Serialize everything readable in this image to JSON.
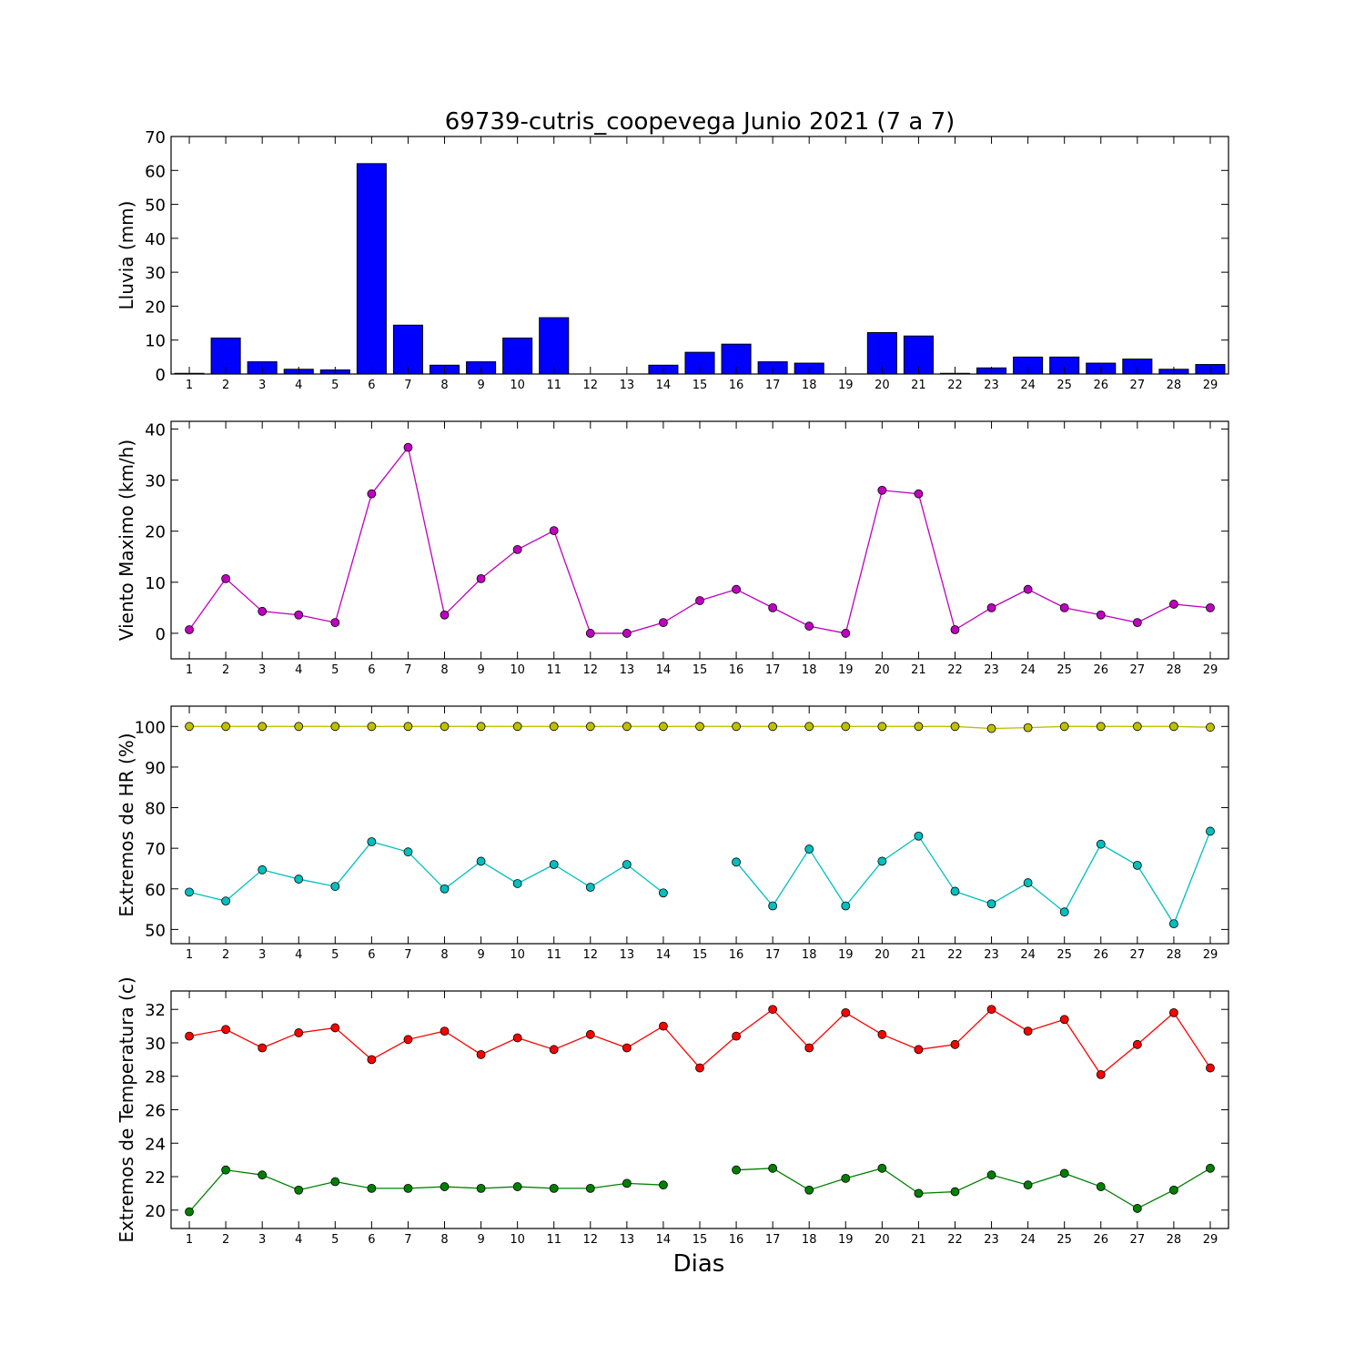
{
  "chart_data": [
    {
      "type": "bar",
      "title": "69739-cutris_coopevega Junio 2021  (7 a 7)",
      "ylabel": "Lluvia (mm)",
      "xlabel": "",
      "ylim": [
        0,
        70
      ],
      "yticks": [
        0,
        10,
        20,
        30,
        40,
        50,
        60,
        70
      ],
      "x": [
        1,
        2,
        3,
        4,
        5,
        6,
        7,
        8,
        9,
        10,
        11,
        12,
        13,
        14,
        15,
        16,
        17,
        18,
        19,
        20,
        21,
        22,
        23,
        24,
        25,
        26,
        27,
        28,
        29
      ],
      "series": [
        {
          "color": "#0000ff",
          "values": [
            0.2,
            10.6,
            3.6,
            1.4,
            1.2,
            62,
            14.4,
            2.6,
            3.6,
            10.6,
            16.6,
            0,
            0,
            2.6,
            6.4,
            8.8,
            3.6,
            3.2,
            0,
            12.2,
            11.2,
            0.2,
            1.8,
            5,
            5,
            3.2,
            4.4,
            1.4,
            2.8
          ]
        }
      ]
    },
    {
      "type": "line",
      "title": "",
      "ylabel": "Viento Maximo (km/h)",
      "xlabel": "",
      "ylim": [
        -5,
        41.5
      ],
      "yticks": [
        0,
        10,
        20,
        30,
        40
      ],
      "x": [
        1,
        2,
        3,
        4,
        5,
        6,
        7,
        8,
        9,
        10,
        11,
        12,
        13,
        14,
        15,
        16,
        17,
        18,
        19,
        20,
        21,
        22,
        23,
        24,
        25,
        26,
        27,
        28,
        29
      ],
      "series": [
        {
          "color": "#bf00bf",
          "values": [
            0.7,
            10.7,
            4.3,
            3.6,
            2.1,
            27.3,
            36.4,
            3.6,
            10.7,
            16.4,
            20.1,
            0,
            0,
            2.1,
            6.4,
            8.6,
            5,
            1.4,
            0,
            28,
            27.3,
            0.7,
            5,
            8.6,
            5,
            3.6,
            2.1,
            5.7,
            5
          ]
        }
      ]
    },
    {
      "type": "line",
      "title": "",
      "ylabel": "Extremos de HR (%)",
      "xlabel": "",
      "ylim": [
        46.5,
        105
      ],
      "yticks": [
        50,
        60,
        70,
        80,
        90,
        100
      ],
      "x": [
        1,
        2,
        3,
        4,
        5,
        6,
        7,
        8,
        9,
        10,
        11,
        12,
        13,
        14,
        15,
        16,
        17,
        18,
        19,
        20,
        21,
        22,
        23,
        24,
        25,
        26,
        27,
        28,
        29
      ],
      "series": [
        {
          "color": "#bfbf00",
          "values": [
            100,
            100,
            100,
            100,
            100,
            100,
            100,
            100,
            100,
            100,
            100,
            100,
            100,
            100,
            100,
            100,
            100,
            100,
            100,
            100,
            100,
            100,
            99.5,
            99.7,
            100,
            100,
            100,
            100,
            99.8
          ]
        },
        {
          "color": "#00bfbf",
          "values": [
            59.2,
            57,
            64.7,
            62.4,
            60.6,
            71.6,
            69.1,
            60,
            66.8,
            61.3,
            66,
            60.4,
            66,
            59,
            null,
            66.6,
            55.8,
            69.8,
            55.8,
            66.8,
            73,
            59.4,
            56.3,
            61.5,
            54.3,
            71,
            65.8,
            51.4,
            74.2
          ]
        }
      ]
    },
    {
      "type": "line",
      "title": "",
      "ylabel": "Extremos de Temperatura (c)",
      "xlabel": "Dias",
      "ylim": [
        18.9,
        33.1
      ],
      "yticks": [
        20,
        22,
        24,
        26,
        28,
        30,
        32
      ],
      "x": [
        1,
        2,
        3,
        4,
        5,
        6,
        7,
        8,
        9,
        10,
        11,
        12,
        13,
        14,
        15,
        16,
        17,
        18,
        19,
        20,
        21,
        22,
        23,
        24,
        25,
        26,
        27,
        28,
        29
      ],
      "series": [
        {
          "color": "#ff0000",
          "values": [
            30.4,
            30.8,
            29.7,
            30.6,
            30.9,
            29,
            30.2,
            30.7,
            29.3,
            30.3,
            29.6,
            30.5,
            29.7,
            31,
            28.5,
            30.4,
            32,
            29.7,
            31.8,
            30.5,
            29.6,
            29.9,
            32,
            30.7,
            31.4,
            28.1,
            29.9,
            31.8,
            28.5
          ]
        },
        {
          "color": "#008000",
          "values": [
            19.9,
            22.4,
            22.1,
            21.2,
            21.7,
            21.3,
            21.3,
            21.4,
            21.3,
            21.4,
            21.3,
            21.3,
            21.6,
            21.5,
            null,
            22.4,
            22.5,
            21.2,
            21.9,
            22.5,
            21,
            21.1,
            22.1,
            21.5,
            22.2,
            21.4,
            20.1,
            21.2,
            22.5
          ]
        }
      ]
    }
  ]
}
